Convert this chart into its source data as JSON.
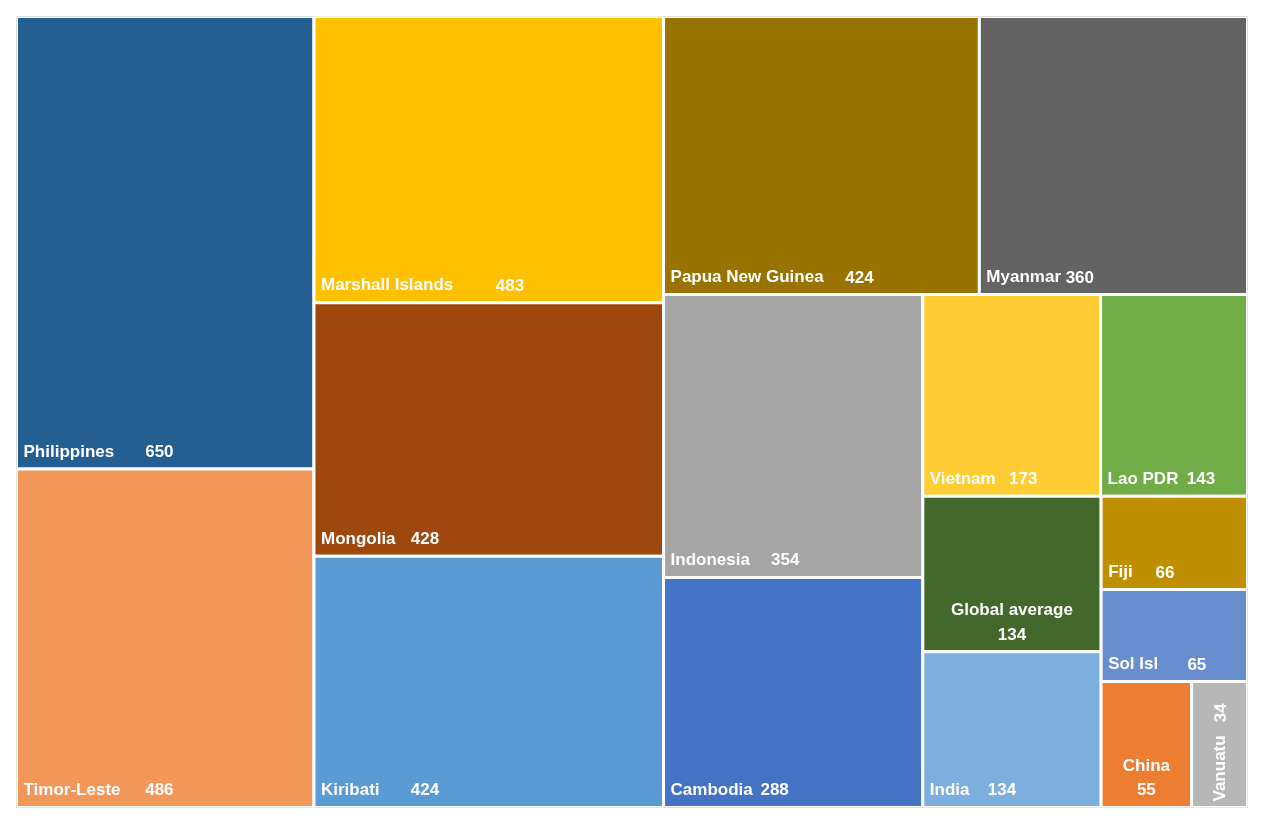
{
  "chart_data": {
    "type": "other",
    "categories": [
      "Philippines",
      "Timor-Leste",
      "Marshall Islands",
      "Mongolia",
      "Kiribati",
      "Papua New Guinea",
      "Myanmar",
      "Indonesia",
      "Cambodia",
      "Vietnam",
      "Lao PDR",
      "Global average",
      "India",
      "Fiji",
      "Sol Isl",
      "China",
      "Vanuatu"
    ],
    "values": [
      650,
      486,
      483,
      428,
      424,
      424,
      360,
      354,
      288,
      173,
      143,
      134,
      134,
      66,
      65,
      55,
      34
    ],
    "colors": [
      "#255e91",
      "#f1975a",
      "#ffc000",
      "#9e480e",
      "#5b9bd5",
      "#997300",
      "#636363",
      "#a5a5a5",
      "#4472c4",
      "#ffcd33",
      "#70ad47",
      "#43682b",
      "#7cafdd",
      "#bf8f00",
      "#698ed0",
      "#ed7d31",
      "#b7b7b7"
    ],
    "data_labels": true
  }
}
